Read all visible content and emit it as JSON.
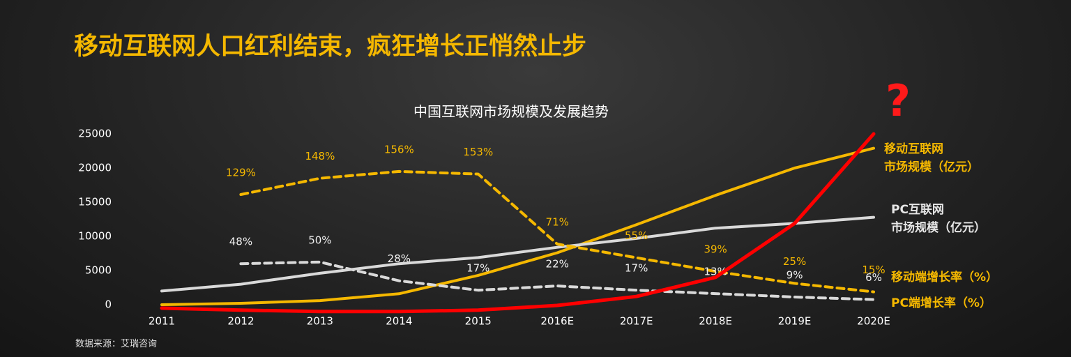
{
  "header": {
    "title": "移动互联网人口红利结束，疯狂增长正悄然止步"
  },
  "chart_data": {
    "type": "line",
    "title": "中国互联网市场规模及发展趋势",
    "categories": [
      "2011",
      "2012",
      "2013",
      "2014",
      "2015",
      "2016E",
      "2017E",
      "2018E",
      "2019E",
      "2020E"
    ],
    "ylim": [
      0,
      25000
    ],
    "yticks": [
      0,
      5000,
      10000,
      15000,
      20000,
      25000
    ],
    "y2lim": [
      0,
      200
    ],
    "series": [
      {
        "name": "移动互联网\n市场规模（亿元）",
        "color": "#f5b800",
        "style": "solid",
        "values": [
          0,
          200,
          600,
          1600,
          4300,
          7600,
          11700,
          16000,
          20000,
          22900
        ]
      },
      {
        "name": "PC互联网\n市场规模（亿元）",
        "color": "#d9d9d9",
        "style": "solid",
        "values": [
          2000,
          3000,
          4600,
          6000,
          6900,
          8400,
          9700,
          11200,
          11900,
          12800
        ]
      },
      {
        "name": "移动端增长率（%）",
        "color": "#f5b800",
        "style": "dashed",
        "axis": "y2",
        "values": [
          null,
          129,
          148,
          156,
          153,
          71,
          55,
          39,
          25,
          15
        ],
        "value_labels": [
          null,
          "129%",
          "148%",
          "156%",
          "153%",
          "71%",
          "55%",
          "39%",
          "25%",
          "15%"
        ]
      },
      {
        "name": "PC端增长率（%）",
        "color": "#d9d9d9",
        "style": "dashed",
        "axis": "y2",
        "values": [
          null,
          48,
          50,
          28,
          17,
          22,
          17,
          13,
          9,
          6
        ],
        "value_labels": [
          null,
          "48%",
          "50%",
          "28%",
          "17%",
          "22%",
          "17%",
          "13%",
          "9%",
          "6%"
        ]
      },
      {
        "color": "#ff0000",
        "style": "solid",
        "values": [
          -500,
          -800,
          -1000,
          -1000,
          -800,
          -100,
          1200,
          4000,
          11900,
          25000
        ]
      }
    ],
    "annotations": [
      "?"
    ],
    "source": "数据来源：艾瑞咨询"
  }
}
